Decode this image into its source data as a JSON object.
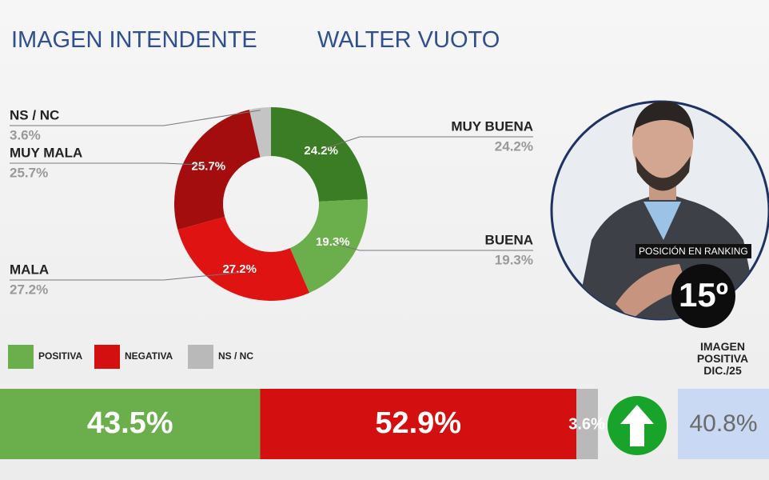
{
  "title": "IMAGEN INTENDENTE",
  "subtitle": "WALTER VUOTO",
  "chart_data": [
    {
      "type": "donut",
      "categories": [
        "MUY BUENA",
        "BUENA",
        "MALA",
        "MUY MALA",
        "NS / NC"
      ],
      "values": [
        24.2,
        19.3,
        27.2,
        25.7,
        3.6
      ],
      "value_labels": [
        "24.2%",
        "19.3%",
        "27.2%",
        "25.7%",
        "3.6%"
      ],
      "colors": [
        "#3b7d24",
        "#6aaf4c",
        "#e01313",
        "#a30d0d",
        "#c4c4c4"
      ]
    },
    {
      "type": "stacked-bar",
      "series": [
        {
          "name": "POSITIVA",
          "color": "#6aaf4c",
          "values": [
            43.5
          ],
          "value_labels": [
            "43.5%"
          ]
        },
        {
          "name": "NEGATIVA",
          "color": "#d40f0f",
          "values": [
            52.9
          ],
          "value_labels": [
            "52.9%"
          ]
        },
        {
          "name": "NS / NC",
          "color": "#b9b9b9",
          "values": [
            3.6
          ],
          "value_labels": [
            "3.6%"
          ]
        }
      ]
    }
  ],
  "ranking": {
    "label": "POSICIÓN EN RANKING",
    "value": "15º"
  },
  "previous": {
    "label": "IMAGEN POSITIVA DIC./25",
    "value": 40.8,
    "value_label": "40.8%"
  }
}
